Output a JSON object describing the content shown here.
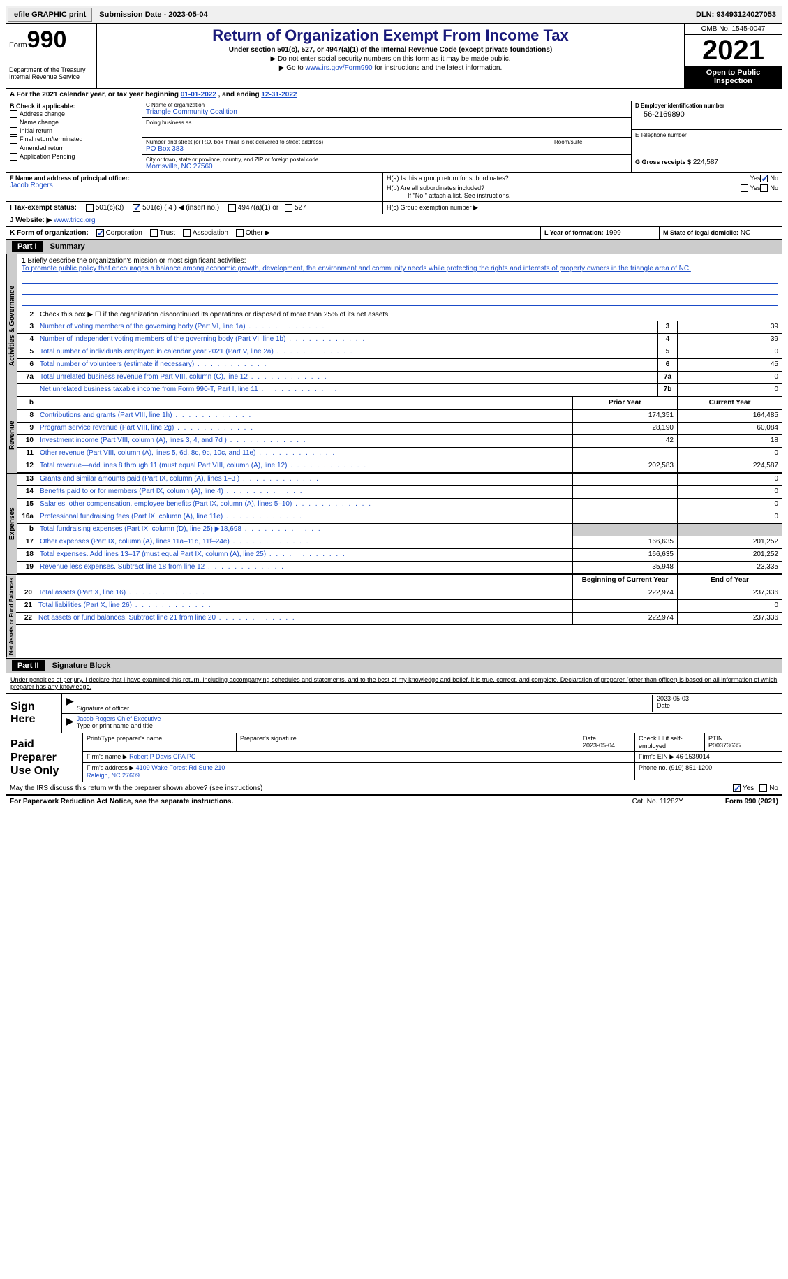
{
  "topbar": {
    "efile": "efile GRAPHIC print",
    "submission": "Submission Date - 2023-05-04",
    "dln": "DLN: 93493124027053"
  },
  "header": {
    "form_word": "Form",
    "form_num": "990",
    "dept": "Department of the Treasury Internal Revenue Service",
    "title": "Return of Organization Exempt From Income Tax",
    "sub1": "Under section 501(c), 527, or 4947(a)(1) of the Internal Revenue Code (except private foundations)",
    "sub2a": "▶ Do not enter social security numbers on this form as it may be made public.",
    "sub2b": "▶ Go to ",
    "link": "www.irs.gov/Form990",
    "sub2c": " for instructions and the latest information.",
    "omb": "OMB No. 1545-0047",
    "year": "2021",
    "open": "Open to Public Inspection"
  },
  "period": {
    "a": "A For the 2021 calendar year, or tax year beginning ",
    "b": "01-01-2022",
    "c": " , and ending ",
    "d": "12-31-2022"
  },
  "sectB": {
    "lbl": "B Check if applicable:",
    "items": [
      "Address change",
      "Name change",
      "Initial return",
      "Final return/terminated",
      "Amended return",
      "Application Pending"
    ]
  },
  "sectC": {
    "name_lbl": "C Name of organization",
    "name": "Triangle Community Coalition",
    "dba_lbl": "Doing business as",
    "dba": "",
    "street_lbl": "Number and street (or P.O. box if mail is not delivered to street address)",
    "street": "PO Box 383",
    "room_lbl": "Room/suite",
    "city_lbl": "City or town, state or province, country, and ZIP or foreign postal code",
    "city": "Morrisville, NC  27560"
  },
  "sectD": {
    "ein_lbl": "D Employer identification number",
    "ein": "56-2169890",
    "tel_lbl": "E Telephone number",
    "tel": "",
    "gross_lbl": "G Gross receipts $",
    "gross": "224,587"
  },
  "sectF": {
    "lbl": "F  Name and address of principal officer:",
    "val": "Jacob Rogers"
  },
  "sectH": {
    "a": "H(a)  Is this a group return for subordinates?",
    "b": "H(b)  Are all subordinates included?",
    "b2": "If \"No,\" attach a list. See instructions.",
    "c": "H(c)  Group exemption number ▶",
    "yes": "Yes",
    "no": "No"
  },
  "sectI": {
    "lbl": "I    Tax-exempt status:",
    "opts": [
      "501(c)(3)",
      "501(c) ( 4 ) ◀ (insert no.)",
      "4947(a)(1) or",
      "527"
    ]
  },
  "sectJ": {
    "lbl": "J   Website: ▶",
    "val": "www.tricc.org"
  },
  "sectK": {
    "lbl": "K Form of organization:",
    "opts": [
      "Corporation",
      "Trust",
      "Association",
      "Other ▶"
    ]
  },
  "sectL": {
    "lbl": "L Year of formation:",
    "val": "1999"
  },
  "sectM": {
    "lbl": "M State of legal domicile:",
    "val": "NC"
  },
  "part1": {
    "hdr": "Part I",
    "title": "Summary",
    "q1": "Briefly describe the organization's mission or most significant activities:",
    "mission": "To promote public policy that encourages a balance among economic growth, development, the environment and community needs while protecting the rights and interests of property owners in the triangle area of NC.",
    "q2": "Check this box ▶ ☐ if the organization discontinued its operations or disposed of more than 25% of its net assets.",
    "py": "Prior Year",
    "cy": "Current Year",
    "boy": "Beginning of Current Year",
    "eoy": "End of Year",
    "tabs": {
      "ag": "Activities & Governance",
      "rev": "Revenue",
      "exp": "Expenses",
      "na": "Net Assets or Fund Balances"
    },
    "lines_ag": [
      {
        "n": "3",
        "d": "Number of voting members of the governing body (Part VI, line 1a)",
        "box": "3",
        "v": "39"
      },
      {
        "n": "4",
        "d": "Number of independent voting members of the governing body (Part VI, line 1b)",
        "box": "4",
        "v": "39"
      },
      {
        "n": "5",
        "d": "Total number of individuals employed in calendar year 2021 (Part V, line 2a)",
        "box": "5",
        "v": "0"
      },
      {
        "n": "6",
        "d": "Total number of volunteers (estimate if necessary)",
        "box": "6",
        "v": "45"
      },
      {
        "n": "7a",
        "d": "Total unrelated business revenue from Part VIII, column (C), line 12",
        "box": "7a",
        "v": "0"
      },
      {
        "n": "",
        "d": "Net unrelated business taxable income from Form 990-T, Part I, line 11",
        "box": "7b",
        "v": "0"
      }
    ],
    "lines_rev": [
      {
        "n": "8",
        "d": "Contributions and grants (Part VIII, line 1h)",
        "py": "174,351",
        "cy": "164,485"
      },
      {
        "n": "9",
        "d": "Program service revenue (Part VIII, line 2g)",
        "py": "28,190",
        "cy": "60,084"
      },
      {
        "n": "10",
        "d": "Investment income (Part VIII, column (A), lines 3, 4, and 7d )",
        "py": "42",
        "cy": "18"
      },
      {
        "n": "11",
        "d": "Other revenue (Part VIII, column (A), lines 5, 6d, 8c, 9c, 10c, and 11e)",
        "py": "",
        "cy": "0"
      },
      {
        "n": "12",
        "d": "Total revenue—add lines 8 through 11 (must equal Part VIII, column (A), line 12)",
        "py": "202,583",
        "cy": "224,587"
      }
    ],
    "lines_exp": [
      {
        "n": "13",
        "d": "Grants and similar amounts paid (Part IX, column (A), lines 1–3 )",
        "py": "",
        "cy": "0"
      },
      {
        "n": "14",
        "d": "Benefits paid to or for members (Part IX, column (A), line 4)",
        "py": "",
        "cy": "0"
      },
      {
        "n": "15",
        "d": "Salaries, other compensation, employee benefits (Part IX, column (A), lines 5–10)",
        "py": "",
        "cy": "0"
      },
      {
        "n": "16a",
        "d": "Professional fundraising fees (Part IX, column (A), line 11e)",
        "py": "",
        "cy": "0"
      },
      {
        "n": "b",
        "d": "Total fundraising expenses (Part IX, column (D), line 25) ▶18,698",
        "py": "shade",
        "cy": "shade"
      },
      {
        "n": "17",
        "d": "Other expenses (Part IX, column (A), lines 11a–11d, 11f–24e)",
        "py": "166,635",
        "cy": "201,252"
      },
      {
        "n": "18",
        "d": "Total expenses. Add lines 13–17 (must equal Part IX, column (A), line 25)",
        "py": "166,635",
        "cy": "201,252"
      },
      {
        "n": "19",
        "d": "Revenue less expenses. Subtract line 18 from line 12",
        "py": "35,948",
        "cy": "23,335"
      }
    ],
    "lines_na": [
      {
        "n": "20",
        "d": "Total assets (Part X, line 16)",
        "py": "222,974",
        "cy": "237,336"
      },
      {
        "n": "21",
        "d": "Total liabilities (Part X, line 26)",
        "py": "",
        "cy": "0"
      },
      {
        "n": "22",
        "d": "Net assets or fund balances. Subtract line 21 from line 20",
        "py": "222,974",
        "cy": "237,336"
      }
    ]
  },
  "part2": {
    "hdr": "Part II",
    "title": "Signature Block",
    "decl": "Under penalties of perjury, I declare that I have examined this return, including accompanying schedules and statements, and to the best of my knowledge and belief, it is true, correct, and complete. Declaration of preparer (other than officer) is based on all information of which preparer has any knowledge.",
    "sign_here": "Sign Here",
    "sig_off": "Signature of officer",
    "sig_date": "Date",
    "sig_date_v": "2023-05-03",
    "sig_name": "Jacob Rogers Chief Executive",
    "sig_name_lbl": "Type or print name and title",
    "paid": "Paid Preparer Use Only",
    "p_name_lbl": "Print/Type preparer's name",
    "p_sig_lbl": "Preparer's signature",
    "p_date_lbl": "Date",
    "p_date": "2023-05-04",
    "p_self": "Check ☐ if self-employed",
    "ptin_lbl": "PTIN",
    "ptin": "P00373635",
    "firm_lbl": "Firm's name    ▶",
    "firm": "Robert P Davis CPA PC",
    "fein_lbl": "Firm's EIN ▶",
    "fein": "46-1539014",
    "addr_lbl": "Firm's address ▶",
    "addr": "4109 Wake Forest Rd Suite 210\nRaleigh, NC  27609",
    "phone_lbl": "Phone no.",
    "phone": "(919) 851-1200",
    "discuss": "May the IRS discuss this return with the preparer shown above? (see instructions)"
  },
  "footer": {
    "pra": "For Paperwork Reduction Act Notice, see the separate instructions.",
    "cat": "Cat. No. 11282Y",
    "form": "Form 990 (2021)"
  }
}
